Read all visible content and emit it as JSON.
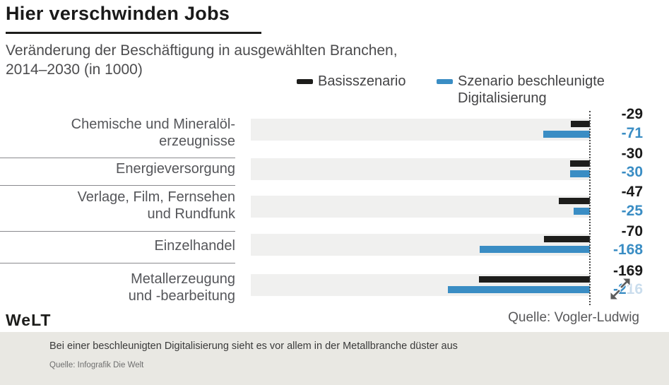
{
  "header": {
    "title": "Hier verschwinden Jobs",
    "subtitle_line1": "Veränderung der Beschäftigung in ausgewählten Branchen,",
    "subtitle_line2": "2014–2030 (in 1000)"
  },
  "legend": {
    "items": [
      {
        "label": "Basisszenario",
        "color": "#1d1d1b"
      },
      {
        "label": "Szenario beschleunigte Digitalisierung",
        "label_line1": "Szenario beschleunigte",
        "label_line2": "Digitalisierung",
        "color": "#3a8dc4"
      }
    ]
  },
  "chart_data": {
    "type": "bar",
    "orientation": "horizontal",
    "title": "Hier verschwinden Jobs",
    "subtitle": "Veränderung der Beschäftigung in ausgewählten Branchen, 2014–2030 (in 1000)",
    "unit": "in 1000",
    "xlim": [
      -230,
      0
    ],
    "baseline": 0,
    "grid": "off",
    "legend_position": "top",
    "categories": [
      "Chemische und Mineralölerzeugnisse",
      "Energieversorgung",
      "Verlage, Film, Fernsehen und Rundfunk",
      "Einzelhandel",
      "Metallerzeugung und -bearbeitung"
    ],
    "series": [
      {
        "name": "Basisszenario",
        "color": "#1d1d1b",
        "values": [
          -29,
          -30,
          -47,
          -70,
          -169
        ]
      },
      {
        "name": "Szenario beschleunigte Digitalisierung",
        "color": "#3a8dc4",
        "values": [
          -71,
          -30,
          -25,
          -168,
          -216
        ]
      }
    ],
    "rows": [
      {
        "label_lines": [
          "Chemische und Mineralöl-",
          "erzeugnisse"
        ],
        "basis": -29,
        "basis_label": "-29",
        "digital": -71,
        "digital_label": "-71"
      },
      {
        "label_lines": [
          "Energieversorgung"
        ],
        "basis": -30,
        "basis_label": "-30",
        "digital": -30,
        "digital_label": "-30"
      },
      {
        "label_lines": [
          "Verlage, Film, Fernsehen",
          "und Rundfunk"
        ],
        "basis": -47,
        "basis_label": "-47",
        "digital": -25,
        "digital_label": "-25"
      },
      {
        "label_lines": [
          "Einzelhandel"
        ],
        "basis": -70,
        "basis_label": "-70",
        "digital": -168,
        "digital_label": "-168"
      },
      {
        "label_lines": [
          "Metallerzeugung",
          "und -bearbeitung"
        ],
        "basis": -169,
        "basis_label": "-169",
        "digital": -216,
        "digital_label": "-216",
        "digital_label_strong": "-2",
        "digital_label_faded": "16"
      }
    ]
  },
  "chart_footer": {
    "source": "Quelle: Vogler-Ludwig"
  },
  "branding": {
    "logo": "WeLT"
  },
  "footer": {
    "caption": "Bei einer beschleunigten Digitalisierung sieht es vor allem in der Metallbranche düster aus",
    "source": "Quelle: Infografik Die Welt"
  },
  "colors": {
    "basis_bar": "#1d1d1b",
    "digital_bar": "#3a8dc4",
    "row_band": "#f0f0ef",
    "footer_band": "#e9e8e3",
    "baseline_dots": "#4a4a4a"
  }
}
